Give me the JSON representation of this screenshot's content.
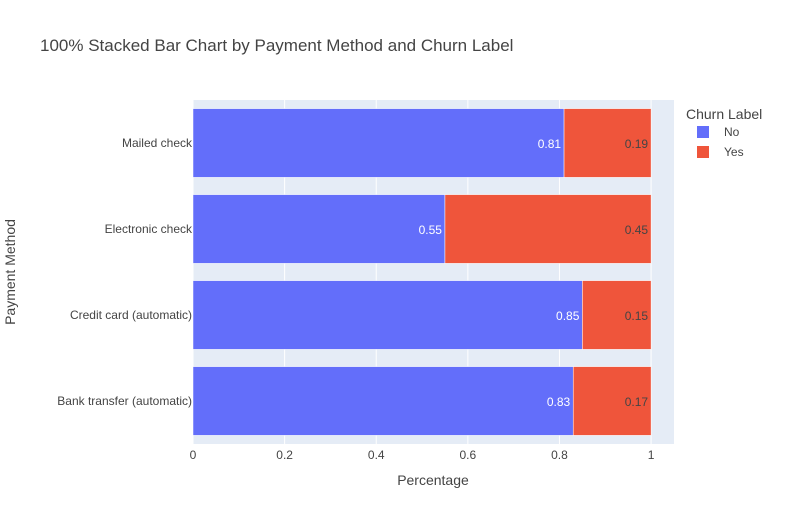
{
  "chart_data": {
    "type": "bar",
    "orientation": "horizontal",
    "stacked": true,
    "title": "100% Stacked Bar Chart by Payment Method and Churn Label",
    "xlabel": "Percentage",
    "ylabel": "Payment Method",
    "xlim": [
      0,
      1.05
    ],
    "xticks": [
      "0",
      "0.2",
      "0.4",
      "0.6",
      "0.8",
      "1"
    ],
    "grid": true,
    "legend_title": "Churn Label",
    "legend_position": "top-right",
    "categories": [
      "Bank transfer (automatic)",
      "Credit card (automatic)",
      "Electronic check",
      "Mailed check"
    ],
    "series": [
      {
        "name": "No",
        "color": "#636efa",
        "values": [
          0.83,
          0.85,
          0.55,
          0.81
        ],
        "labels": [
          "0.83",
          "0.85",
          "0.55",
          "0.81"
        ]
      },
      {
        "name": "Yes",
        "color": "#ef553b",
        "values": [
          0.17,
          0.15,
          0.45,
          0.19
        ],
        "labels": [
          "0.17",
          "0.15",
          "0.45",
          "0.19"
        ]
      }
    ]
  }
}
